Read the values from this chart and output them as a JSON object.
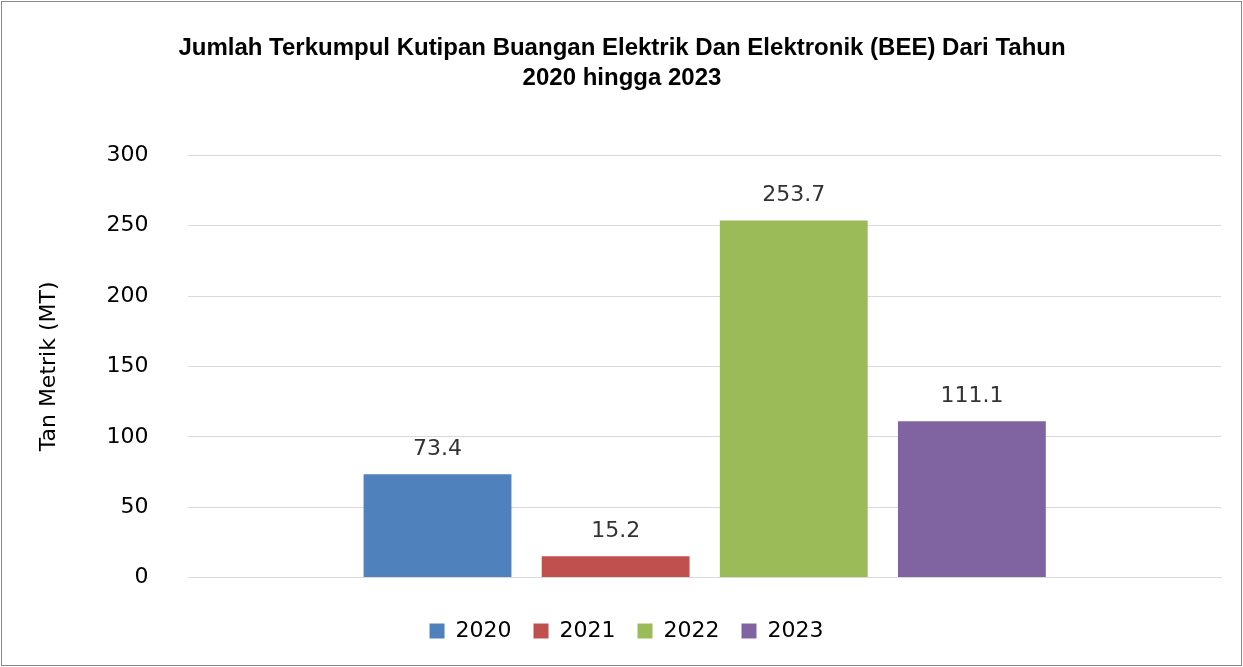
{
  "chart_data": {
    "type": "bar",
    "title": "Jumlah Terkumpul Kutipan Buangan Elektrik Dan Elektronik (BEE) Dari Tahun 2020 hingga 2023",
    "ylabel": "Tan Metrik (MT)",
    "categories": [
      null
    ],
    "series": [
      {
        "name": "2020",
        "color": "#4f81bd",
        "values": [
          73.4
        ]
      },
      {
        "name": "2021",
        "color": "#c0504d",
        "values": [
          15.2
        ]
      },
      {
        "name": "2022",
        "color": "#9bbb59",
        "values": [
          253.7
        ]
      },
      {
        "name": "2023",
        "color": "#8064a2",
        "values": [
          111.1
        ]
      }
    ],
    "ylim": [
      0,
      300
    ],
    "yticks": [
      0,
      50,
      100,
      150,
      200,
      250,
      300
    ],
    "grid": "y",
    "legend": "bottom",
    "data_labels": true
  }
}
